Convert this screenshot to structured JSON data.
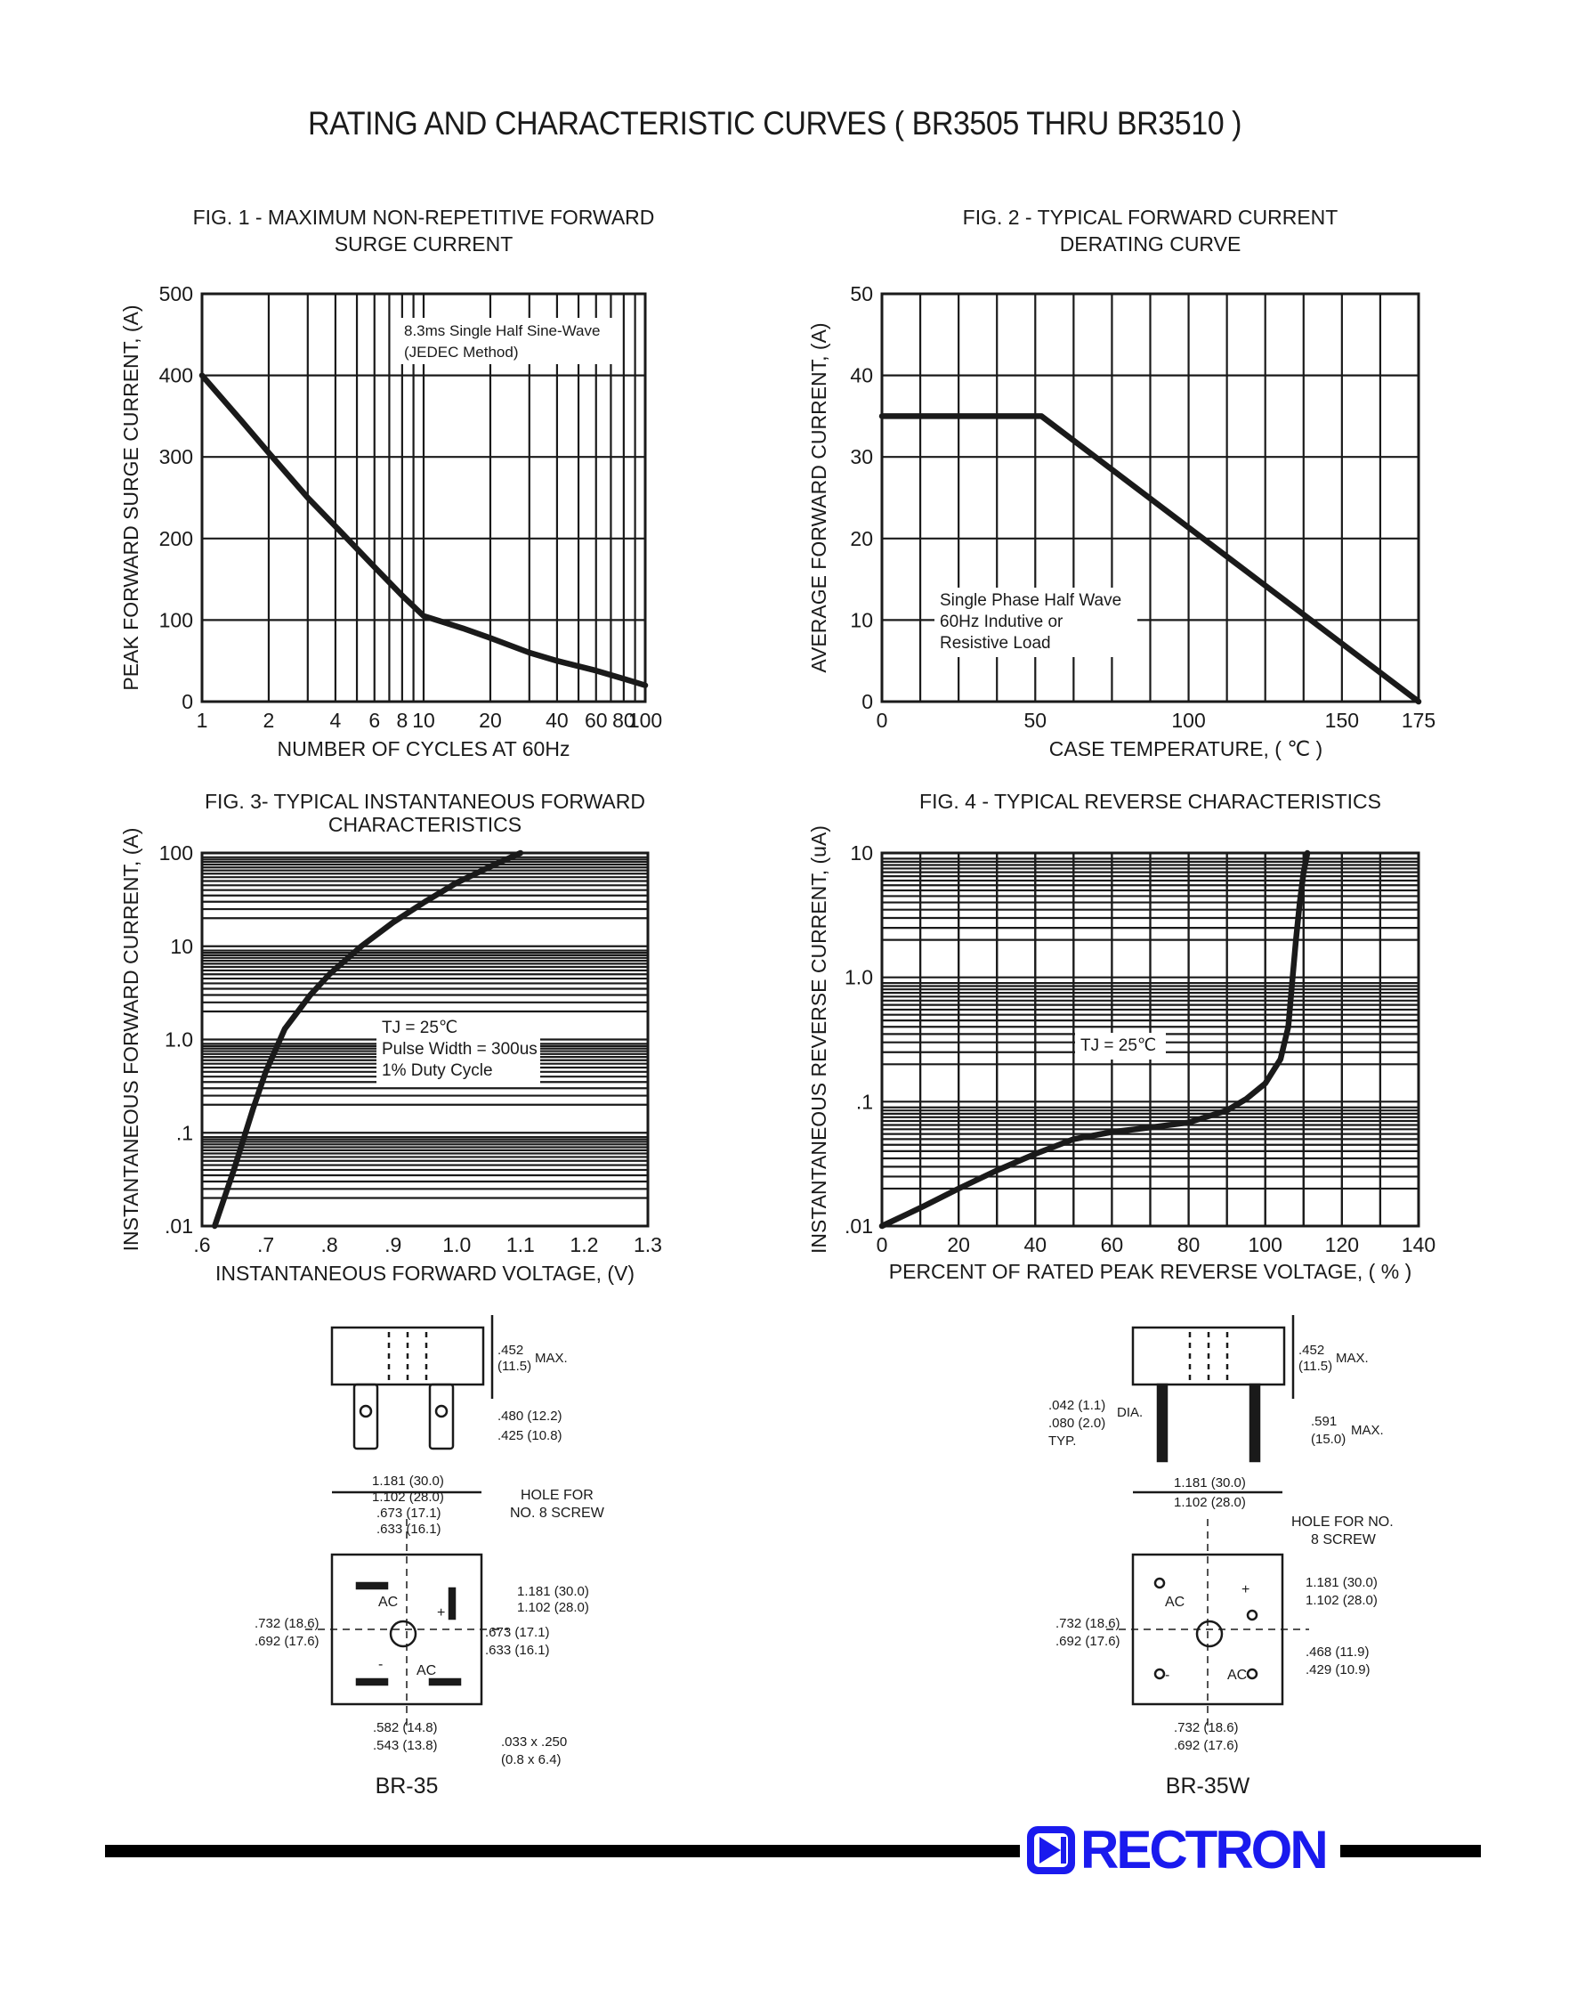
{
  "page": {
    "title": "RATING AND CHARACTERISTIC CURVES ( BR3505 THRU BR3510 )",
    "brand": "RECTRON",
    "brand_color": "#1a1aee"
  },
  "chart_data": [
    {
      "id": "fig1",
      "type": "line",
      "title": "FIG. 1 - MAXIMUM NON-REPETITIVE FORWARD",
      "subtitle": "SURGE CURRENT",
      "xlabel": "NUMBER OF CYCLES AT 60Hz",
      "ylabel": "PEAK FORWARD SURGE CURRENT, (A)",
      "xscale": "log",
      "xlim": [
        1,
        100
      ],
      "ylim": [
        0,
        500
      ],
      "xticks": [
        "1",
        "2",
        "4",
        "6",
        "8",
        "10",
        "20",
        "40",
        "60",
        "80",
        "100"
      ],
      "yticks": [
        "0",
        "100",
        "200",
        "300",
        "400",
        "500"
      ],
      "annotation": [
        "8.3ms Single Half Sine-Wave",
        "(JEDEC Method)"
      ],
      "series": [
        {
          "x": [
            1,
            1.5,
            2,
            3,
            4,
            6,
            8,
            10,
            15,
            20,
            30,
            40,
            60,
            80,
            100
          ],
          "y": [
            400,
            345,
            305,
            250,
            215,
            165,
            130,
            105,
            90,
            78,
            60,
            50,
            38,
            28,
            20
          ]
        }
      ]
    },
    {
      "id": "fig2",
      "type": "line",
      "title": "FIG. 2 - TYPICAL FORWARD CURRENT",
      "subtitle": "DERATING CURVE",
      "xlabel": "CASE TEMPERATURE, ( ℃ )",
      "ylabel": "AVERAGE FORWARD  CURRENT, (A)",
      "xlim": [
        0,
        175
      ],
      "ylim": [
        0,
        50
      ],
      "xticks": [
        "0",
        "50",
        "100",
        "150",
        "175"
      ],
      "yticks": [
        "0",
        "10",
        "20",
        "30",
        "40",
        "50"
      ],
      "annotation": [
        "Single Phase Half Wave",
        "60Hz Indutive or",
        "Resistive Load"
      ],
      "series": [
        {
          "x": [
            0,
            52,
            175
          ],
          "y": [
            35,
            35,
            0
          ]
        }
      ]
    },
    {
      "id": "fig3",
      "type": "line",
      "title": "FIG. 3- TYPICAL INSTANTANEOUS FORWARD",
      "subtitle": "CHARACTERISTICS",
      "xlabel": "INSTANTANEOUS FORWARD VOLTAGE, (V)",
      "ylabel": "INSTANTANEOUS FORWARD CURRENT, (A)",
      "yscale": "log",
      "xlim": [
        0.6,
        1.3
      ],
      "ylim": [
        0.01,
        100
      ],
      "xticks": [
        ".6",
        ".7",
        ".8",
        ".9",
        "1.0",
        "1.1",
        "1.2",
        "1.3"
      ],
      "yticks": [
        ".01",
        ".1",
        "1.0",
        "10",
        "100"
      ],
      "annotation": [
        "TJ = 25℃",
        "Pulse Width = 300us",
        "1% Duty Cycle"
      ],
      "series": [
        {
          "x": [
            0.62,
            0.65,
            0.68,
            0.7,
            0.73,
            0.77,
            0.8,
            0.85,
            0.9,
            0.95,
            1.0,
            1.05,
            1.1
          ],
          "y": [
            0.01,
            0.04,
            0.18,
            0.45,
            1.3,
            3.0,
            5.0,
            10,
            18,
            30,
            48,
            70,
            100
          ]
        }
      ]
    },
    {
      "id": "fig4",
      "type": "line",
      "title": "FIG. 4 - TYPICAL REVERSE CHARACTERISTICS",
      "subtitle": "",
      "xlabel": "PERCENT OF RATED PEAK REVERSE VOLTAGE, ( % )",
      "ylabel": "INSTANTANEOUS REVERSE CURRENT, (uA)",
      "yscale": "log",
      "xlim": [
        0,
        140
      ],
      "ylim": [
        0.01,
        10
      ],
      "xticks": [
        "0",
        "20",
        "40",
        "60",
        "80",
        "100",
        "120",
        "140"
      ],
      "yticks": [
        ".01",
        ".1",
        "1.0",
        "10"
      ],
      "annotation": [
        "TJ = 25℃"
      ],
      "series": [
        {
          "x": [
            0,
            10,
            20,
            30,
            40,
            50,
            60,
            70,
            80,
            90,
            95,
            100,
            104,
            106,
            107,
            108,
            109,
            110,
            111
          ],
          "y": [
            0.01,
            0.014,
            0.02,
            0.028,
            0.038,
            0.05,
            0.057,
            0.062,
            0.068,
            0.085,
            0.105,
            0.14,
            0.22,
            0.4,
            0.9,
            2.0,
            4.0,
            7.0,
            10
          ]
        }
      ]
    }
  ],
  "drawings": {
    "br35": {
      "label": "BR-35",
      "dims": [
        ".452",
        "(11.5)",
        "MAX.",
        ".480 (12.2)",
        ".425 (10.8)",
        "1.181 (30.0)",
        "1.102 (28.0)",
        ".673 (17.1)",
        ".633 (16.1)",
        "HOLE FOR",
        "NO. 8 SCREW",
        "1.181 (30.0)",
        "1.102 (28.0)",
        ".673 (17.1)",
        ".633 (16.1)",
        ".732 (18.6)",
        ".692 (17.6)",
        ".582 (14.8)",
        ".543 (13.8)",
        ".033 x .250",
        "(0.8 x 6.4)",
        "AC",
        "AC",
        "+",
        "-"
      ]
    },
    "br35w": {
      "label": "BR-35W",
      "dims": [
        ".452",
        "(11.5)",
        "MAX.",
        ".042 (1.1)",
        ".080 (2.0)",
        "DIA.",
        "TYP.",
        ".591",
        "(15.0)",
        "MAX.",
        "1.181 (30.0)",
        "1.102 (28.0)",
        "HOLE FOR NO.",
        "8 SCREW",
        "1.181 (30.0)",
        "1.102 (28.0)",
        ".732 (18.6)",
        ".692 (17.6)",
        ".468 (11.9)",
        ".429 (10.9)",
        ".732 (18.6)",
        ".692 (17.6)",
        "AC",
        "AC",
        "+",
        "-"
      ]
    }
  }
}
